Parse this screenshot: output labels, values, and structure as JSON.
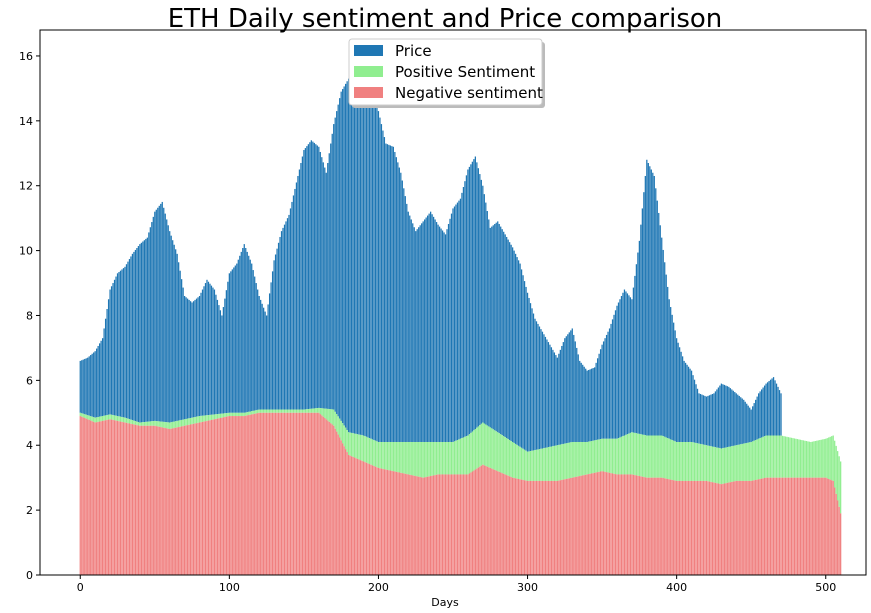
{
  "chart_data": {
    "type": "bar",
    "stacked": true,
    "title": "ETH Daily sentiment and Price comparison",
    "xlabel": "Days",
    "ylabel": "",
    "xlim": [
      -27,
      527
    ],
    "ylim": [
      0,
      16.8
    ],
    "x_ticks": [
      0,
      100,
      200,
      300,
      400,
      500
    ],
    "y_ticks": [
      0,
      2,
      4,
      6,
      8,
      10,
      12,
      14,
      16
    ],
    "grid": false,
    "legend": {
      "placement": "top-center",
      "entries": [
        {
          "label": "Price",
          "color": "#1f77b4"
        },
        {
          "label": "Positive Sentiment",
          "color": "#90ee90"
        },
        {
          "label": "Negative sentiment",
          "color": "#f08080"
        }
      ]
    },
    "series": [
      {
        "name": "Price",
        "color": "#1f77b4",
        "points": [
          [
            0,
            6.6
          ],
          [
            5,
            6.7
          ],
          [
            10,
            6.9
          ],
          [
            15,
            7.3
          ],
          [
            20,
            8.8
          ],
          [
            25,
            9.3
          ],
          [
            30,
            9.5
          ],
          [
            35,
            9.9
          ],
          [
            40,
            10.2
          ],
          [
            45,
            10.4
          ],
          [
            50,
            11.2
          ],
          [
            55,
            11.5
          ],
          [
            60,
            10.6
          ],
          [
            65,
            9.9
          ],
          [
            70,
            8.6
          ],
          [
            75,
            8.4
          ],
          [
            80,
            8.6
          ],
          [
            85,
            9.1
          ],
          [
            90,
            8.8
          ],
          [
            95,
            8.0
          ],
          [
            100,
            9.3
          ],
          [
            105,
            9.6
          ],
          [
            110,
            10.2
          ],
          [
            115,
            9.6
          ],
          [
            120,
            8.6
          ],
          [
            125,
            8.0
          ],
          [
            130,
            9.7
          ],
          [
            135,
            10.6
          ],
          [
            140,
            11.1
          ],
          [
            145,
            12.1
          ],
          [
            150,
            13.1
          ],
          [
            155,
            13.4
          ],
          [
            160,
            13.2
          ],
          [
            165,
            12.4
          ],
          [
            170,
            13.9
          ],
          [
            175,
            14.9
          ],
          [
            180,
            15.3
          ],
          [
            185,
            14.5
          ],
          [
            190,
            15.6
          ],
          [
            195,
            14.8
          ],
          [
            200,
            14.3
          ],
          [
            205,
            13.3
          ],
          [
            210,
            13.2
          ],
          [
            215,
            12.4
          ],
          [
            220,
            11.2
          ],
          [
            225,
            10.6
          ],
          [
            230,
            10.9
          ],
          [
            235,
            11.2
          ],
          [
            240,
            10.8
          ],
          [
            245,
            10.5
          ],
          [
            250,
            11.3
          ],
          [
            255,
            11.6
          ],
          [
            260,
            12.5
          ],
          [
            265,
            12.9
          ],
          [
            270,
            12.0
          ],
          [
            275,
            10.7
          ],
          [
            280,
            10.9
          ],
          [
            285,
            10.5
          ],
          [
            290,
            10.1
          ],
          [
            295,
            9.6
          ],
          [
            300,
            8.7
          ],
          [
            305,
            7.9
          ],
          [
            310,
            7.5
          ],
          [
            315,
            7.1
          ],
          [
            320,
            6.7
          ],
          [
            325,
            7.3
          ],
          [
            330,
            7.6
          ],
          [
            335,
            6.6
          ],
          [
            340,
            6.3
          ],
          [
            345,
            6.4
          ],
          [
            350,
            7.1
          ],
          [
            355,
            7.6
          ],
          [
            360,
            8.3
          ],
          [
            365,
            8.8
          ],
          [
            370,
            8.5
          ],
          [
            375,
            10.3
          ],
          [
            380,
            12.8
          ],
          [
            385,
            12.3
          ],
          [
            390,
            10.4
          ],
          [
            395,
            8.5
          ],
          [
            400,
            7.3
          ],
          [
            405,
            6.6
          ],
          [
            410,
            6.3
          ],
          [
            415,
            5.6
          ],
          [
            420,
            5.5
          ],
          [
            425,
            5.6
          ],
          [
            430,
            5.9
          ],
          [
            435,
            5.8
          ],
          [
            440,
            5.6
          ],
          [
            445,
            5.4
          ],
          [
            450,
            5.1
          ],
          [
            455,
            5.6
          ],
          [
            460,
            5.9
          ],
          [
            465,
            6.1
          ],
          [
            470,
            5.6
          ]
        ]
      },
      {
        "name": "Positive Sentiment",
        "color": "#90ee90",
        "points": [
          [
            0,
            0.1
          ],
          [
            10,
            0.15
          ],
          [
            20,
            0.15
          ],
          [
            30,
            0.15
          ],
          [
            40,
            0.1
          ],
          [
            50,
            0.15
          ],
          [
            60,
            0.2
          ],
          [
            70,
            0.2
          ],
          [
            80,
            0.2
          ],
          [
            90,
            0.15
          ],
          [
            100,
            0.1
          ],
          [
            110,
            0.1
          ],
          [
            120,
            0.1
          ],
          [
            130,
            0.1
          ],
          [
            140,
            0.1
          ],
          [
            150,
            0.1
          ],
          [
            160,
            0.15
          ],
          [
            170,
            0.5
          ],
          [
            180,
            0.7
          ],
          [
            190,
            0.8
          ],
          [
            200,
            0.8
          ],
          [
            210,
            0.9
          ],
          [
            220,
            1.0
          ],
          [
            230,
            1.1
          ],
          [
            240,
            1.0
          ],
          [
            250,
            1.0
          ],
          [
            260,
            1.2
          ],
          [
            270,
            1.3
          ],
          [
            280,
            1.2
          ],
          [
            290,
            1.1
          ],
          [
            300,
            0.9
          ],
          [
            310,
            1.0
          ],
          [
            320,
            1.1
          ],
          [
            330,
            1.1
          ],
          [
            340,
            1.0
          ],
          [
            350,
            1.0
          ],
          [
            360,
            1.1
          ],
          [
            370,
            1.3
          ],
          [
            380,
            1.3
          ],
          [
            390,
            1.3
          ],
          [
            400,
            1.2
          ],
          [
            410,
            1.2
          ],
          [
            420,
            1.1
          ],
          [
            430,
            1.1
          ],
          [
            440,
            1.1
          ],
          [
            450,
            1.2
          ],
          [
            460,
            1.3
          ],
          [
            470,
            1.3
          ],
          [
            480,
            1.2
          ],
          [
            490,
            1.1
          ],
          [
            500,
            1.2
          ],
          [
            505,
            1.4
          ],
          [
            510,
            1.6
          ]
        ]
      },
      {
        "name": "Negative sentiment",
        "color": "#f08080",
        "points": [
          [
            0,
            4.9
          ],
          [
            10,
            4.7
          ],
          [
            20,
            4.8
          ],
          [
            30,
            4.7
          ],
          [
            40,
            4.6
          ],
          [
            50,
            4.6
          ],
          [
            60,
            4.5
          ],
          [
            70,
            4.6
          ],
          [
            80,
            4.7
          ],
          [
            90,
            4.8
          ],
          [
            100,
            4.9
          ],
          [
            110,
            4.9
          ],
          [
            120,
            5.0
          ],
          [
            130,
            5.0
          ],
          [
            140,
            5.0
          ],
          [
            150,
            5.0
          ],
          [
            160,
            5.0
          ],
          [
            170,
            4.6
          ],
          [
            180,
            3.7
          ],
          [
            190,
            3.5
          ],
          [
            200,
            3.3
          ],
          [
            210,
            3.2
          ],
          [
            220,
            3.1
          ],
          [
            230,
            3.0
          ],
          [
            240,
            3.1
          ],
          [
            250,
            3.1
          ],
          [
            260,
            3.1
          ],
          [
            270,
            3.4
          ],
          [
            280,
            3.2
          ],
          [
            290,
            3.0
          ],
          [
            300,
            2.9
          ],
          [
            310,
            2.9
          ],
          [
            320,
            2.9
          ],
          [
            330,
            3.0
          ],
          [
            340,
            3.1
          ],
          [
            350,
            3.2
          ],
          [
            360,
            3.1
          ],
          [
            370,
            3.1
          ],
          [
            380,
            3.0
          ],
          [
            390,
            3.0
          ],
          [
            400,
            2.9
          ],
          [
            410,
            2.9
          ],
          [
            420,
            2.9
          ],
          [
            430,
            2.8
          ],
          [
            440,
            2.9
          ],
          [
            450,
            2.9
          ],
          [
            460,
            3.0
          ],
          [
            470,
            3.0
          ],
          [
            480,
            3.0
          ],
          [
            490,
            3.0
          ],
          [
            500,
            3.0
          ],
          [
            505,
            2.9
          ],
          [
            510,
            1.9
          ]
        ]
      }
    ]
  }
}
